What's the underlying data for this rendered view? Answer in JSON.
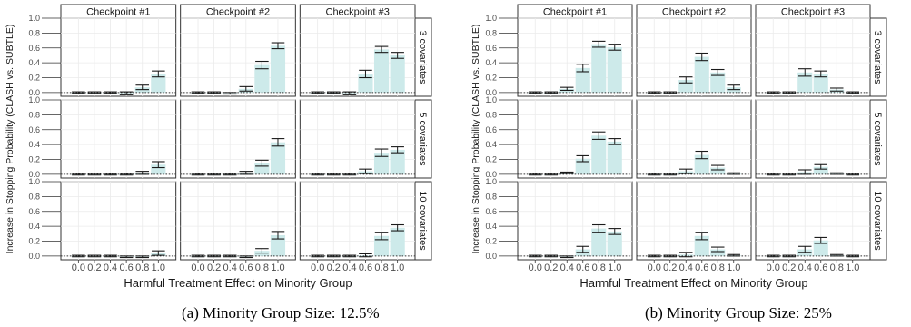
{
  "captions": [
    "(a) Minority Group Size: 12.5%",
    "(b) Minority Group Size: 25%"
  ],
  "chart_data": [
    {
      "type": "bar",
      "caption": "(a) Minority Group Size: 12.5%",
      "xlabel": "Harmful Treatment Effect on Minority Group",
      "ylabel": "Increase in Stopping Probability (CLASH vs. SUBTLE)",
      "x": [
        "0.0",
        "0.2",
        "0.4",
        "0.6",
        "0.8",
        "1.0"
      ],
      "columns": [
        "Checkpoint #1",
        "Checkpoint #2",
        "Checkpoint #3"
      ],
      "rows": [
        "3 covariates",
        "5 covariates",
        "10 covariates"
      ],
      "y_ticks": [
        "0.0",
        "0.2",
        "0.4",
        "0.6",
        "0.8",
        "1.0"
      ],
      "ylim": [
        -0.05,
        1.0
      ],
      "bar_color": "#cdeaea",
      "panels": [
        [
          {
            "values": [
              0.0,
              0.0,
              0.0,
              -0.01,
              0.07,
              0.25
            ],
            "err": [
              0.01,
              0.01,
              0.01,
              0.02,
              0.03,
              0.04
            ]
          },
          {
            "values": [
              0.0,
              0.0,
              -0.01,
              0.05,
              0.37,
              0.63
            ],
            "err": [
              0.01,
              0.01,
              0.01,
              0.03,
              0.05,
              0.04
            ]
          },
          {
            "values": [
              0.0,
              0.0,
              -0.01,
              0.25,
              0.58,
              0.5
            ],
            "err": [
              0.01,
              0.01,
              0.02,
              0.05,
              0.04,
              0.04
            ]
          }
        ],
        [
          {
            "values": [
              0.0,
              0.0,
              0.0,
              0.0,
              0.02,
              0.13
            ],
            "err": [
              0.01,
              0.01,
              0.01,
              0.01,
              0.02,
              0.04
            ]
          },
          {
            "values": [
              0.0,
              0.0,
              0.0,
              0.02,
              0.15,
              0.43
            ],
            "err": [
              0.01,
              0.01,
              0.01,
              0.02,
              0.04,
              0.05
            ]
          },
          {
            "values": [
              0.0,
              0.0,
              0.0,
              0.04,
              0.29,
              0.33
            ],
            "err": [
              0.01,
              0.01,
              0.01,
              0.03,
              0.05,
              0.04
            ]
          }
        ],
        [
          {
            "values": [
              0.0,
              0.0,
              0.0,
              -0.01,
              -0.01,
              0.04
            ],
            "err": [
              0.01,
              0.01,
              0.01,
              0.01,
              0.01,
              0.03
            ]
          },
          {
            "values": [
              0.0,
              0.0,
              0.0,
              -0.01,
              0.07,
              0.28
            ],
            "err": [
              0.01,
              0.01,
              0.01,
              0.01,
              0.03,
              0.05
            ]
          },
          {
            "values": [
              0.0,
              0.0,
              0.0,
              0.01,
              0.27,
              0.38
            ],
            "err": [
              0.01,
              0.01,
              0.01,
              0.02,
              0.05,
              0.04
            ]
          }
        ]
      ]
    },
    {
      "type": "bar",
      "caption": "(b) Minority Group Size: 25%",
      "xlabel": "Harmful Treatment Effect on Minority Group",
      "ylabel": "Increase in Stopping Probability (CLASH vs. SUBTLE)",
      "x": [
        "0.0",
        "0.2",
        "0.4",
        "0.6",
        "0.8",
        "1.0"
      ],
      "columns": [
        "Checkpoint #1",
        "Checkpoint #2",
        "Checkpoint #3"
      ],
      "rows": [
        "3 covariates",
        "5 covariates",
        "10 covariates"
      ],
      "y_ticks": [
        "0.0",
        "0.2",
        "0.4",
        "0.6",
        "0.8",
        "1.0"
      ],
      "ylim": [
        -0.05,
        1.0
      ],
      "bar_color": "#cdeaea",
      "panels": [
        [
          {
            "values": [
              0.0,
              0.0,
              0.05,
              0.33,
              0.65,
              0.61
            ],
            "err": [
              0.01,
              0.01,
              0.02,
              0.05,
              0.04,
              0.04
            ]
          },
          {
            "values": [
              0.0,
              0.0,
              0.17,
              0.48,
              0.27,
              0.07
            ],
            "err": [
              0.01,
              0.01,
              0.04,
              0.05,
              0.04,
              0.03
            ]
          },
          {
            "values": [
              0.0,
              0.0,
              0.27,
              0.25,
              0.04,
              0.0
            ],
            "err": [
              0.01,
              0.01,
              0.05,
              0.04,
              0.02,
              0.01
            ]
          }
        ],
        [
          {
            "values": [
              0.0,
              0.0,
              0.02,
              0.21,
              0.52,
              0.44
            ],
            "err": [
              0.01,
              0.01,
              0.01,
              0.04,
              0.05,
              0.04
            ]
          },
          {
            "values": [
              0.0,
              0.0,
              0.04,
              0.26,
              0.09,
              0.01
            ],
            "err": [
              0.01,
              0.01,
              0.03,
              0.05,
              0.03,
              0.01
            ]
          },
          {
            "values": [
              0.0,
              0.0,
              0.03,
              0.1,
              0.01,
              0.0
            ],
            "err": [
              0.01,
              0.01,
              0.03,
              0.03,
              0.01,
              0.01
            ]
          }
        ],
        [
          {
            "values": [
              0.0,
              0.0,
              -0.01,
              0.09,
              0.37,
              0.33
            ],
            "err": [
              0.01,
              0.01,
              0.01,
              0.04,
              0.05,
              0.04
            ]
          },
          {
            "values": [
              0.0,
              0.0,
              0.02,
              0.27,
              0.09,
              0.01
            ],
            "err": [
              0.01,
              0.01,
              0.03,
              0.05,
              0.03,
              0.01
            ]
          },
          {
            "values": [
              0.0,
              0.0,
              0.09,
              0.21,
              0.01,
              0.0
            ],
            "err": [
              0.01,
              0.01,
              0.04,
              0.04,
              0.01,
              0.01
            ]
          }
        ]
      ]
    }
  ]
}
